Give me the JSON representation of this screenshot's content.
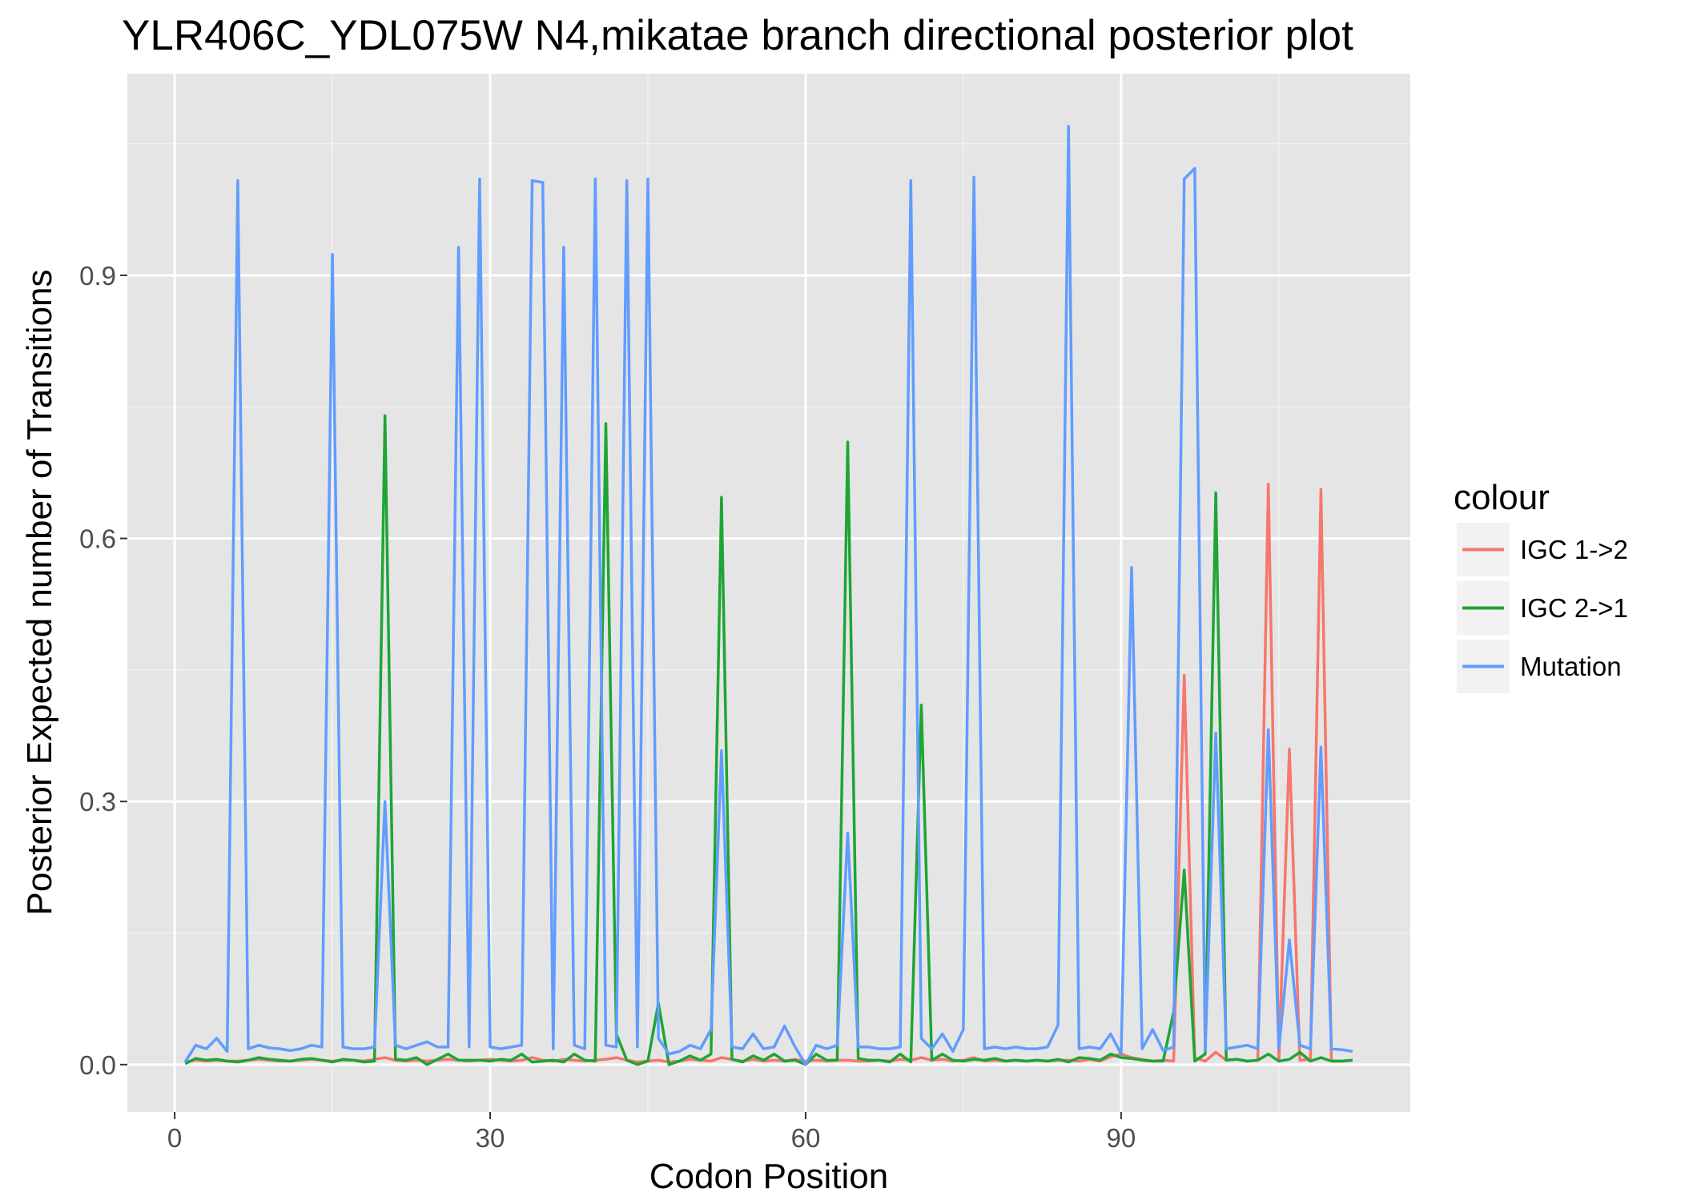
{
  "chart_data": {
    "type": "line",
    "title": "YLR406C_YDL075W N4,mikatae branch directional posterior plot",
    "xlabel": "Codon Position",
    "ylabel": "Posterior Expected number of Transitions",
    "xlim": [
      -4.5,
      117.5
    ],
    "ylim": [
      -0.054,
      1.13
    ],
    "x_ticks": [
      0,
      30,
      60,
      90
    ],
    "y_ticks": [
      0.0,
      0.3,
      0.6,
      0.9
    ],
    "x_tick_labels": [
      "0",
      "30",
      "60",
      "90"
    ],
    "y_tick_labels": [
      "0.0",
      "0.3",
      "0.6",
      "0.9"
    ],
    "grid": true,
    "legend": {
      "title": "colour",
      "position": "right"
    },
    "x": [
      1,
      2,
      3,
      4,
      5,
      6,
      7,
      8,
      9,
      10,
      11,
      12,
      13,
      14,
      15,
      16,
      17,
      18,
      19,
      20,
      21,
      22,
      23,
      24,
      25,
      26,
      27,
      28,
      29,
      30,
      31,
      32,
      33,
      34,
      35,
      36,
      37,
      38,
      39,
      40,
      41,
      42,
      43,
      44,
      45,
      46,
      47,
      48,
      49,
      50,
      51,
      52,
      53,
      54,
      55,
      56,
      57,
      58,
      59,
      60,
      61,
      62,
      63,
      64,
      65,
      66,
      67,
      68,
      69,
      70,
      71,
      72,
      73,
      74,
      75,
      76,
      77,
      78,
      79,
      80,
      81,
      82,
      83,
      84,
      85,
      86,
      87,
      88,
      89,
      90,
      91,
      92,
      93,
      94,
      95,
      96,
      97,
      98,
      99,
      100,
      101,
      102,
      103,
      104,
      105,
      106,
      107,
      108,
      109,
      110,
      111,
      112
    ],
    "series": [
      {
        "name": "IGC 1->2",
        "color": "#f8766d",
        "values": [
          0.003,
          0.005,
          0.004,
          0.005,
          0.004,
          0.004,
          0.005,
          0.006,
          0.005,
          0.004,
          0.004,
          0.005,
          0.006,
          0.005,
          0.004,
          0.005,
          0.005,
          0.004,
          0.006,
          0.008,
          0.005,
          0.004,
          0.005,
          0.004,
          0.005,
          0.006,
          0.005,
          0.004,
          0.005,
          0.006,
          0.005,
          0.004,
          0.005,
          0.008,
          0.005,
          0.004,
          0.006,
          0.005,
          0.004,
          0.005,
          0.006,
          0.008,
          0.005,
          0.003,
          0.004,
          0.005,
          0.003,
          0.004,
          0.006,
          0.005,
          0.004,
          0.008,
          0.006,
          0.004,
          0.006,
          0.004,
          0.005,
          0.004,
          0.006,
          0.004,
          0.005,
          0.004,
          0.005,
          0.005,
          0.004,
          0.004,
          0.005,
          0.004,
          0.006,
          0.005,
          0.008,
          0.005,
          0.006,
          0.004,
          0.005,
          0.008,
          0.004,
          0.005,
          0.004,
          0.005,
          0.004,
          0.005,
          0.004,
          0.005,
          0.005,
          0.004,
          0.006,
          0.004,
          0.009,
          0.012,
          0.008,
          0.006,
          0.004,
          0.005,
          0.004,
          0.444,
          0.008,
          0.004,
          0.014,
          0.005,
          0.006,
          0.004,
          0.005,
          0.662,
          0.004,
          0.36,
          0.005,
          0.006,
          0.656,
          0.004,
          0.004,
          0.005
        ]
      },
      {
        "name": "IGC 2->1",
        "color": "#1ea535",
        "values": [
          0.001,
          0.007,
          0.005,
          0.006,
          0.004,
          0.003,
          0.005,
          0.008,
          0.006,
          0.005,
          0.004,
          0.006,
          0.007,
          0.005,
          0.003,
          0.006,
          0.005,
          0.003,
          0.004,
          0.74,
          0.006,
          0.005,
          0.008,
          0.0,
          0.006,
          0.012,
          0.005,
          0.005,
          0.005,
          0.004,
          0.006,
          0.005,
          0.012,
          0.003,
          0.004,
          0.005,
          0.003,
          0.012,
          0.005,
          0.004,
          0.731,
          0.035,
          0.005,
          0.0,
          0.004,
          0.07,
          0.0,
          0.004,
          0.01,
          0.005,
          0.012,
          0.647,
          0.006,
          0.003,
          0.01,
          0.005,
          0.012,
          0.004,
          0.005,
          0.0,
          0.012,
          0.005,
          0.005,
          0.71,
          0.007,
          0.005,
          0.005,
          0.003,
          0.012,
          0.003,
          0.41,
          0.005,
          0.012,
          0.005,
          0.004,
          0.006,
          0.005,
          0.007,
          0.004,
          0.005,
          0.004,
          0.005,
          0.004,
          0.006,
          0.003,
          0.008,
          0.007,
          0.005,
          0.012,
          0.008,
          0.007,
          0.005,
          0.004,
          0.004,
          0.06,
          0.222,
          0.004,
          0.012,
          0.652,
          0.005,
          0.006,
          0.004,
          0.005,
          0.012,
          0.004,
          0.006,
          0.014,
          0.004,
          0.008,
          0.004,
          0.004,
          0.005
        ]
      },
      {
        "name": "Mutation",
        "color": "#619cff",
        "values": [
          0.003,
          0.022,
          0.018,
          0.03,
          0.015,
          1.008,
          0.018,
          0.022,
          0.019,
          0.018,
          0.016,
          0.018,
          0.022,
          0.02,
          0.924,
          0.02,
          0.018,
          0.018,
          0.02,
          0.3,
          0.022,
          0.018,
          0.022,
          0.026,
          0.02,
          0.02,
          0.932,
          0.02,
          1.01,
          0.02,
          0.018,
          0.02,
          0.022,
          1.008,
          1.006,
          0.018,
          0.932,
          0.022,
          0.018,
          1.01,
          0.022,
          0.02,
          1.008,
          0.02,
          1.01,
          0.03,
          0.012,
          0.015,
          0.022,
          0.018,
          0.04,
          0.358,
          0.02,
          0.018,
          0.035,
          0.018,
          0.02,
          0.044,
          0.02,
          0.0,
          0.022,
          0.018,
          0.022,
          0.264,
          0.02,
          0.02,
          0.018,
          0.018,
          0.02,
          1.008,
          0.03,
          0.018,
          0.035,
          0.015,
          0.04,
          1.012,
          0.018,
          0.02,
          0.018,
          0.02,
          0.018,
          0.018,
          0.02,
          0.045,
          1.07,
          0.018,
          0.02,
          0.018,
          0.035,
          0.012,
          0.567,
          0.018,
          0.04,
          0.016,
          0.02,
          1.01,
          1.022,
          0.016,
          0.378,
          0.018,
          0.02,
          0.022,
          0.018,
          0.382,
          0.018,
          0.142,
          0.022,
          0.018,
          0.362,
          0.018,
          0.017,
          0.015
        ]
      }
    ]
  }
}
